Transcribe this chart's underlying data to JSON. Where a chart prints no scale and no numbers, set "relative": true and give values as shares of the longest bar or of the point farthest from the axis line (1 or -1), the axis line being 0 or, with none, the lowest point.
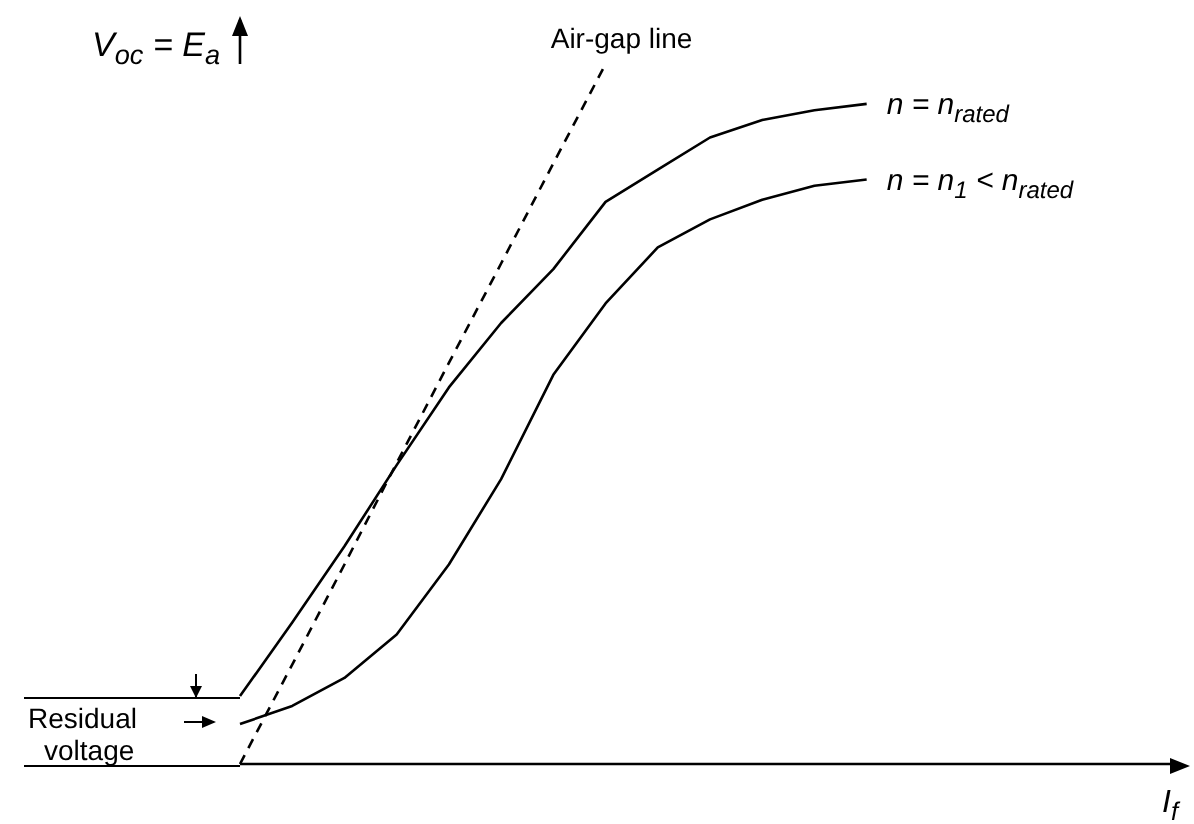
{
  "chart_data": {
    "type": "line",
    "relative": true,
    "xlabel": "I$_{f}$",
    "ylabel": "V$_{oc}$ = E$_{a}$",
    "annotations": [
      "Residual voltage"
    ],
    "grid": false,
    "legend": false,
    "marker": "none",
    "categories": [
      null,
      null,
      null,
      null,
      null,
      null,
      null,
      null,
      null,
      null,
      null,
      null,
      null,
      null,
      null,
      null,
      null,
      null,
      null
    ],
    "series": [
      {
        "name": "n = n$_{rated}$",
        "color": "#000000",
        "line_style": "solid",
        "values": [
          0.097,
          0.202,
          0.311,
          0.427,
          0.538,
          0.63,
          0.707,
          0.803,
          0.849,
          0.895,
          0.92,
          0.934,
          0.943,
          null,
          null,
          null,
          null,
          null,
          null
        ]
      },
      {
        "name": "n = n$_{1}$ < n$_{rated}$",
        "color": "#000000",
        "line_style": "solid",
        "values": [
          0.057,
          0.083,
          0.123,
          0.185,
          0.285,
          0.407,
          0.556,
          0.658,
          0.738,
          0.778,
          0.806,
          0.826,
          0.835,
          null,
          null,
          null,
          null,
          null,
          null
        ]
      },
      {
        "name": "Air-gap line",
        "color": "#000000",
        "line_style": "dashed",
        "values": [
          0,
          0.142,
          0.285,
          0.43,
          0.573,
          0.715,
          0.858,
          1,
          null,
          null,
          null,
          null,
          null,
          null,
          null,
          null,
          null,
          null,
          null
        ]
      }
    ]
  }
}
